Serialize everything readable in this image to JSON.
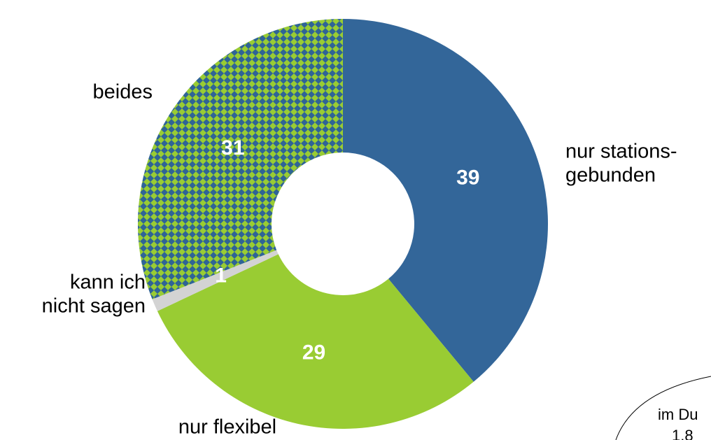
{
  "chart_data": {
    "type": "donut",
    "categories": [
      [
        "nur stations-",
        "gebunden"
      ],
      [
        "nur flexibel"
      ],
      [
        "kann ich",
        "nicht sagen"
      ],
      [
        "beides"
      ]
    ],
    "values": [
      39,
      29,
      1,
      31
    ],
    "colors": [
      "#336699",
      "#99cc33",
      "#d3d3d3",
      "#99cc33"
    ],
    "patterns": [
      null,
      null,
      null,
      "#2f6496"
    ],
    "annotation": [
      "im Du",
      "1,8"
    ]
  }
}
